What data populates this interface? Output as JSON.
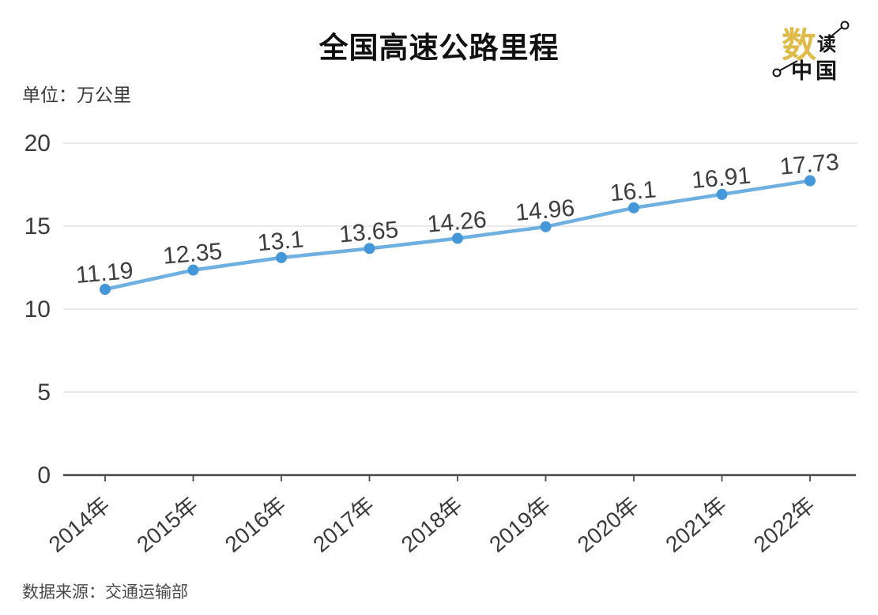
{
  "title": "全国高速公路里程",
  "unit_label": "单位：万公里",
  "source": "数据来源：交通运输部",
  "logo": {
    "char_main": "数",
    "char_second": "读",
    "char_bottom": "中国",
    "accent_color": "#DFBC49",
    "ink_color": "#151515"
  },
  "chart_data": {
    "type": "line",
    "title": "全国高速公路里程",
    "categories": [
      "2014年",
      "2015年",
      "2016年",
      "2017年",
      "2018年",
      "2019年",
      "2020年",
      "2021年",
      "2022年"
    ],
    "values": [
      11.19,
      12.35,
      13.1,
      13.65,
      14.26,
      14.96,
      16.1,
      16.91,
      17.73
    ],
    "ylabel": "万公里",
    "ylim": [
      0,
      20
    ],
    "yticks": [
      0,
      5,
      10,
      15,
      20
    ],
    "grid": "horizontal",
    "legend": "none",
    "line_color": "#6FB0E2",
    "point_color": "#4497D8",
    "value_label_color": "#3d3d3d",
    "axis_color": "#4a4a4a",
    "grid_color": "#e3e3e3",
    "tick_label_color": "#3a3a3a"
  }
}
